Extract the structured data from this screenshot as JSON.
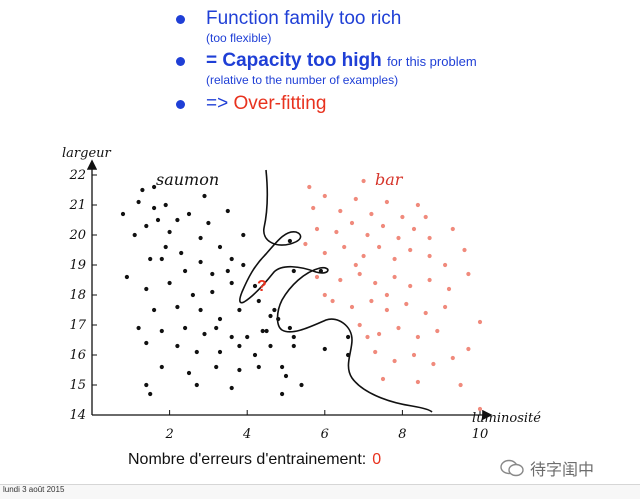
{
  "bullets": [
    {
      "text": "Function family too rich",
      "sub": "(too flexible)"
    },
    {
      "text": "= Capacity too high",
      "suffix": "for this problem",
      "sub": "(relative to the number of examples)"
    },
    {
      "prefix": "=>",
      "highlight": "Over-fitting"
    }
  ],
  "chart_data": {
    "type": "scatter",
    "xlabel": "luminosité",
    "ylabel": "largeur",
    "xlim": [
      0,
      10.5
    ],
    "ylim": [
      14,
      22.3
    ],
    "x_ticks": [
      2,
      4,
      6,
      8,
      10
    ],
    "y_ticks": [
      14,
      15,
      16,
      17,
      18,
      19,
      20,
      21,
      22
    ],
    "annotation": "?",
    "colors": {
      "saumon": "#111111",
      "bar": "#f08a7c",
      "boundary": "#111111"
    },
    "series": [
      {
        "name": "saumon",
        "points": [
          [
            0.8,
            20.7
          ],
          [
            1.1,
            20.0
          ],
          [
            1.2,
            21.1
          ],
          [
            1.3,
            21.5
          ],
          [
            1.4,
            20.3
          ],
          [
            1.6,
            20.9
          ],
          [
            1.7,
            20.5
          ],
          [
            1.9,
            19.6
          ],
          [
            1.9,
            21.0
          ],
          [
            2.2,
            20.5
          ],
          [
            2.5,
            20.7
          ],
          [
            2.8,
            19.9
          ],
          [
            3.0,
            20.4
          ],
          [
            3.3,
            19.6
          ],
          [
            3.6,
            19.2
          ],
          [
            3.9,
            20.0
          ],
          [
            2.0,
            20.1
          ],
          [
            1.5,
            19.2
          ],
          [
            1.8,
            19.2
          ],
          [
            2.3,
            19.4
          ],
          [
            2.4,
            18.8
          ],
          [
            2.8,
            19.1
          ],
          [
            3.1,
            18.7
          ],
          [
            3.5,
            18.8
          ],
          [
            3.9,
            19.0
          ],
          [
            0.9,
            18.6
          ],
          [
            1.4,
            18.2
          ],
          [
            2.0,
            18.4
          ],
          [
            2.6,
            18.0
          ],
          [
            3.1,
            18.1
          ],
          [
            3.6,
            18.4
          ],
          [
            4.2,
            18.3
          ],
          [
            1.6,
            17.5
          ],
          [
            2.2,
            17.6
          ],
          [
            2.8,
            17.5
          ],
          [
            3.3,
            17.2
          ],
          [
            3.8,
            17.5
          ],
          [
            4.3,
            17.8
          ],
          [
            4.7,
            17.5
          ],
          [
            1.2,
            16.9
          ],
          [
            1.8,
            16.8
          ],
          [
            2.4,
            16.9
          ],
          [
            2.9,
            16.7
          ],
          [
            3.2,
            16.9
          ],
          [
            3.6,
            16.6
          ],
          [
            4.0,
            16.6
          ],
          [
            4.5,
            16.8
          ],
          [
            5.1,
            16.9
          ],
          [
            1.4,
            16.4
          ],
          [
            2.2,
            16.3
          ],
          [
            2.7,
            16.1
          ],
          [
            3.3,
            16.1
          ],
          [
            3.8,
            16.3
          ],
          [
            4.2,
            16.0
          ],
          [
            4.6,
            16.3
          ],
          [
            5.2,
            16.3
          ],
          [
            6.0,
            16.2
          ],
          [
            6.6,
            16.0
          ],
          [
            1.8,
            15.6
          ],
          [
            2.5,
            15.4
          ],
          [
            3.2,
            15.6
          ],
          [
            3.8,
            15.5
          ],
          [
            4.3,
            15.6
          ],
          [
            4.9,
            15.6
          ],
          [
            1.4,
            15.0
          ],
          [
            2.7,
            15.0
          ],
          [
            3.6,
            14.9
          ],
          [
            5.4,
            15.0
          ],
          [
            1.5,
            14.7
          ],
          [
            4.9,
            14.7
          ],
          [
            5.2,
            16.6
          ],
          [
            4.8,
            17.2
          ],
          [
            5.1,
            19.8
          ],
          [
            5.2,
            18.8
          ],
          [
            4.6,
            17.3
          ],
          [
            5.9,
            18.8
          ],
          [
            6.6,
            16.6
          ],
          [
            3.5,
            20.8
          ],
          [
            2.9,
            21.3
          ],
          [
            1.6,
            21.6
          ],
          [
            4.4,
            16.8
          ],
          [
            5.0,
            15.3
          ]
        ]
      },
      {
        "name": "bar",
        "points": [
          [
            5.7,
            20.9
          ],
          [
            6.0,
            21.3
          ],
          [
            6.4,
            20.8
          ],
          [
            6.8,
            21.2
          ],
          [
            7.2,
            20.7
          ],
          [
            7.6,
            21.1
          ],
          [
            8.0,
            20.6
          ],
          [
            8.4,
            21.0
          ],
          [
            7.0,
            21.8
          ],
          [
            5.8,
            20.2
          ],
          [
            6.3,
            20.1
          ],
          [
            6.7,
            20.4
          ],
          [
            7.1,
            20.0
          ],
          [
            7.5,
            20.3
          ],
          [
            7.9,
            19.9
          ],
          [
            8.3,
            20.2
          ],
          [
            8.7,
            19.9
          ],
          [
            9.3,
            20.2
          ],
          [
            5.5,
            19.7
          ],
          [
            6.0,
            19.4
          ],
          [
            6.5,
            19.6
          ],
          [
            7.0,
            19.3
          ],
          [
            7.4,
            19.6
          ],
          [
            7.8,
            19.2
          ],
          [
            8.2,
            19.5
          ],
          [
            8.7,
            19.3
          ],
          [
            9.1,
            19.0
          ],
          [
            9.6,
            19.5
          ],
          [
            5.8,
            18.6
          ],
          [
            6.4,
            18.5
          ],
          [
            6.9,
            18.7
          ],
          [
            7.3,
            18.4
          ],
          [
            7.8,
            18.6
          ],
          [
            8.2,
            18.3
          ],
          [
            8.7,
            18.5
          ],
          [
            9.2,
            18.2
          ],
          [
            9.7,
            18.7
          ],
          [
            6.2,
            17.8
          ],
          [
            6.7,
            17.6
          ],
          [
            7.2,
            17.8
          ],
          [
            7.6,
            17.5
          ],
          [
            8.1,
            17.7
          ],
          [
            8.6,
            17.4
          ],
          [
            9.1,
            17.6
          ],
          [
            6.9,
            17.0
          ],
          [
            7.4,
            16.7
          ],
          [
            7.9,
            16.9
          ],
          [
            8.4,
            16.6
          ],
          [
            8.9,
            16.8
          ],
          [
            10.0,
            17.1
          ],
          [
            7.3,
            16.1
          ],
          [
            7.8,
            15.8
          ],
          [
            8.3,
            16.0
          ],
          [
            8.8,
            15.7
          ],
          [
            9.3,
            15.9
          ],
          [
            9.7,
            16.2
          ],
          [
            7.5,
            15.2
          ],
          [
            8.4,
            15.1
          ],
          [
            9.5,
            15.0
          ],
          [
            10.0,
            14.2
          ],
          [
            7.1,
            16.6
          ],
          [
            6.0,
            18.0
          ],
          [
            6.8,
            19.0
          ],
          [
            5.6,
            21.6
          ],
          [
            7.6,
            18.0
          ],
          [
            8.6,
            20.6
          ]
        ]
      }
    ]
  },
  "footer": {
    "errors_label": "Nombre d'erreurs d'entrainement:",
    "errors_value": "0",
    "date": "lundi 3 août 2015"
  },
  "watermark": {
    "text": "待字闺中"
  }
}
